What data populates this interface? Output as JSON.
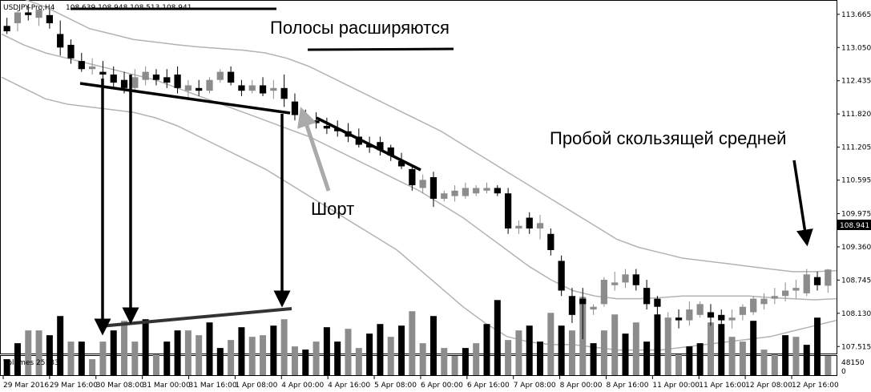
{
  "chart_data": {
    "type": "candlestick",
    "instrument_label": "USDJPY-Pro,H4",
    "ohlc_readout": "108.639 108.948 108.513 108.941",
    "price_ticks": [
      "113.665",
      "113.050",
      "112.435",
      "111.820",
      "111.205",
      "110.595",
      "109.975",
      "109.360",
      "108.745",
      "108.130",
      "107.515"
    ],
    "last_price": "108.941",
    "ylim": [
      107.4,
      113.9
    ],
    "candles": [
      [
        113.45,
        113.6,
        113.3,
        113.35
      ],
      [
        113.5,
        113.75,
        113.35,
        113.7
      ],
      [
        113.7,
        113.85,
        113.55,
        113.65
      ],
      [
        113.6,
        113.8,
        113.45,
        113.75
      ],
      [
        113.65,
        113.75,
        113.4,
        113.5
      ],
      [
        113.3,
        113.55,
        112.9,
        113.05
      ],
      [
        113.1,
        113.2,
        112.75,
        112.85
      ],
      [
        112.8,
        112.95,
        112.6,
        112.65
      ],
      [
        112.65,
        112.85,
        112.55,
        112.7
      ],
      [
        112.6,
        112.8,
        112.4,
        112.55
      ],
      [
        112.55,
        112.7,
        112.3,
        112.4
      ],
      [
        112.45,
        112.6,
        112.2,
        112.3
      ],
      [
        112.3,
        112.65,
        112.25,
        112.5
      ],
      [
        112.45,
        112.7,
        112.35,
        112.6
      ],
      [
        112.55,
        112.65,
        112.35,
        112.45
      ],
      [
        112.5,
        112.65,
        112.3,
        112.4
      ],
      [
        112.55,
        112.7,
        112.2,
        112.3
      ],
      [
        112.25,
        112.45,
        112.1,
        112.35
      ],
      [
        112.3,
        112.45,
        112.15,
        112.25
      ],
      [
        112.25,
        112.5,
        112.2,
        112.45
      ],
      [
        112.45,
        112.65,
        112.4,
        112.6
      ],
      [
        112.6,
        112.7,
        112.35,
        112.4
      ],
      [
        112.35,
        112.45,
        112.15,
        112.25
      ],
      [
        112.25,
        112.45,
        112.2,
        112.35
      ],
      [
        112.35,
        112.5,
        112.15,
        112.2
      ],
      [
        112.25,
        112.45,
        112.1,
        112.3
      ],
      [
        112.3,
        112.55,
        111.95,
        112.1
      ],
      [
        112.05,
        112.2,
        111.7,
        111.8
      ],
      [
        111.8,
        111.9,
        111.6,
        111.7
      ],
      [
        111.7,
        111.85,
        111.55,
        111.65
      ],
      [
        111.6,
        111.75,
        111.45,
        111.55
      ],
      [
        111.55,
        111.7,
        111.4,
        111.5
      ],
      [
        111.5,
        111.65,
        111.3,
        111.4
      ],
      [
        111.4,
        111.55,
        111.2,
        111.25
      ],
      [
        111.25,
        111.4,
        111.1,
        111.2
      ],
      [
        111.3,
        111.4,
        111.05,
        111.15
      ],
      [
        111.2,
        111.25,
        110.95,
        111.05
      ],
      [
        110.95,
        111.1,
        110.8,
        110.85
      ],
      [
        110.8,
        110.85,
        110.4,
        110.5
      ],
      [
        110.45,
        110.7,
        110.35,
        110.6
      ],
      [
        110.65,
        110.75,
        110.1,
        110.25
      ],
      [
        110.25,
        110.4,
        110.2,
        110.35
      ],
      [
        110.3,
        110.5,
        110.2,
        110.4
      ],
      [
        110.3,
        110.55,
        110.25,
        110.45
      ],
      [
        110.35,
        110.5,
        110.3,
        110.45
      ],
      [
        110.4,
        110.55,
        110.35,
        110.45
      ],
      [
        110.45,
        110.5,
        110.3,
        110.35
      ],
      [
        110.35,
        110.45,
        109.6,
        109.7
      ],
      [
        109.7,
        109.85,
        109.6,
        109.75
      ],
      [
        109.9,
        110.0,
        109.6,
        109.7
      ],
      [
        109.7,
        109.95,
        109.5,
        109.8
      ],
      [
        109.6,
        109.7,
        109.2,
        109.3
      ],
      [
        109.1,
        109.2,
        108.45,
        108.55
      ],
      [
        108.45,
        108.6,
        107.95,
        108.1
      ],
      [
        108.4,
        108.6,
        107.65,
        108.3
      ],
      [
        108.2,
        108.3,
        108.1,
        108.25
      ],
      [
        108.3,
        108.8,
        108.25,
        108.75
      ],
      [
        108.65,
        108.9,
        108.55,
        108.7
      ],
      [
        108.7,
        108.95,
        108.6,
        108.85
      ],
      [
        108.85,
        108.95,
        108.55,
        108.65
      ],
      [
        108.6,
        108.75,
        108.2,
        108.3
      ],
      [
        108.4,
        108.45,
        108.1,
        108.25
      ],
      [
        108.0,
        108.15,
        107.95,
        108.05
      ],
      [
        108.05,
        108.2,
        107.85,
        108.0
      ],
      [
        108.0,
        108.35,
        107.9,
        108.2
      ],
      [
        108.1,
        108.35,
        108.05,
        108.3
      ],
      [
        108.15,
        108.3,
        107.9,
        108.05
      ],
      [
        108.1,
        108.2,
        107.9,
        108.0
      ],
      [
        108.0,
        108.2,
        107.85,
        108.05
      ],
      [
        108.1,
        108.3,
        108.0,
        108.25
      ],
      [
        108.15,
        108.45,
        108.1,
        108.4
      ],
      [
        108.3,
        108.5,
        108.2,
        108.4
      ],
      [
        108.4,
        108.6,
        108.3,
        108.45
      ],
      [
        108.45,
        108.7,
        108.35,
        108.55
      ],
      [
        108.55,
        108.75,
        108.4,
        108.6
      ],
      [
        108.5,
        108.95,
        108.45,
        108.85
      ],
      [
        108.8,
        108.9,
        108.55,
        108.65
      ],
      [
        108.64,
        108.95,
        108.51,
        108.94
      ]
    ],
    "band_upper": [
      114.1,
      113.95,
      113.8,
      113.6,
      113.4,
      113.3,
      113.2,
      113.15,
      113.1,
      113.06,
      113.03,
      113.0,
      112.95,
      112.85,
      112.7,
      112.5,
      112.3,
      112.1,
      111.9,
      111.7,
      111.5,
      111.25,
      111.0,
      110.75,
      110.5,
      110.25,
      110.0,
      109.75,
      109.5,
      109.35,
      109.25,
      109.15,
      109.1,
      109.05,
      109.0,
      108.95,
      108.9,
      108.9,
      108.92
    ],
    "band_middle": [
      113.3,
      113.1,
      112.95,
      112.85,
      112.75,
      112.65,
      112.55,
      112.45,
      112.3,
      112.15,
      112.0,
      111.85,
      111.7,
      111.55,
      111.4,
      111.2,
      111.0,
      110.8,
      110.6,
      110.4,
      110.15,
      109.9,
      109.6,
      109.3,
      109.0,
      108.75,
      108.55,
      108.45,
      108.4,
      108.4,
      108.42,
      108.45,
      108.45,
      108.45,
      108.45,
      108.42,
      108.4,
      108.38,
      108.4
    ],
    "band_lower": [
      112.5,
      112.3,
      112.1,
      112.0,
      111.95,
      111.9,
      111.85,
      111.75,
      111.6,
      111.4,
      111.2,
      111.0,
      110.8,
      110.55,
      110.3,
      110.05,
      109.8,
      109.55,
      109.3,
      108.95,
      108.6,
      108.25,
      107.95,
      107.7,
      107.6,
      107.55,
      107.55,
      107.5,
      107.45,
      107.45,
      107.45,
      107.5,
      107.55,
      107.6,
      107.65,
      107.7,
      107.8,
      107.9,
      108.0
    ],
    "volumes_label": "Volumes 25183",
    "volume_ticks": [
      "48150",
      "0"
    ],
    "volume_max": 48150,
    "volumes": [
      10000,
      20000,
      28000,
      28000,
      25000,
      37000,
      21000,
      21000,
      10000,
      21000,
      28000,
      34000,
      21000,
      35000,
      13000,
      21000,
      28000,
      28000,
      25000,
      33000,
      17000,
      22000,
      30000,
      24000,
      25000,
      31000,
      35000,
      18000,
      16000,
      21000,
      30000,
      21000,
      29000,
      17000,
      26000,
      32000,
      24000,
      31000,
      40000,
      20000,
      37000,
      17000,
      12000,
      17000,
      20000,
      32000,
      47000,
      22000,
      28000,
      31000,
      21000,
      39000,
      31000,
      28000,
      49000,
      20000,
      28000,
      38000,
      26000,
      33000,
      21000,
      38000,
      35000,
      13000,
      18000,
      20000,
      33000,
      32000,
      24000,
      21000,
      34000,
      16000,
      13000,
      25000,
      24000,
      19000,
      36000,
      12000
    ],
    "x_ticks": [
      "29 Mar 2016",
      "29 Mar 16:00",
      "30 Mar 08:00",
      "31 Mar 00:00",
      "31 Mar 16:00",
      "1 Apr 08:00",
      "4 Apr 00:00",
      "4 Apr 16:00",
      "5 Apr 08:00",
      "6 Apr 00:00",
      "6 Apr 16:00",
      "7 Apr 08:00",
      "8 Apr 00:00",
      "8 Apr 16:00",
      "11 Apr 00:00",
      "11 Apr 16:00",
      "12 Apr 08:00",
      "12 Apr 16:00"
    ],
    "annotations": {
      "bands_widening": "Полосы расширяются",
      "short": "Шорт",
      "ma_breakout": "Пробой скользящей средней"
    }
  }
}
